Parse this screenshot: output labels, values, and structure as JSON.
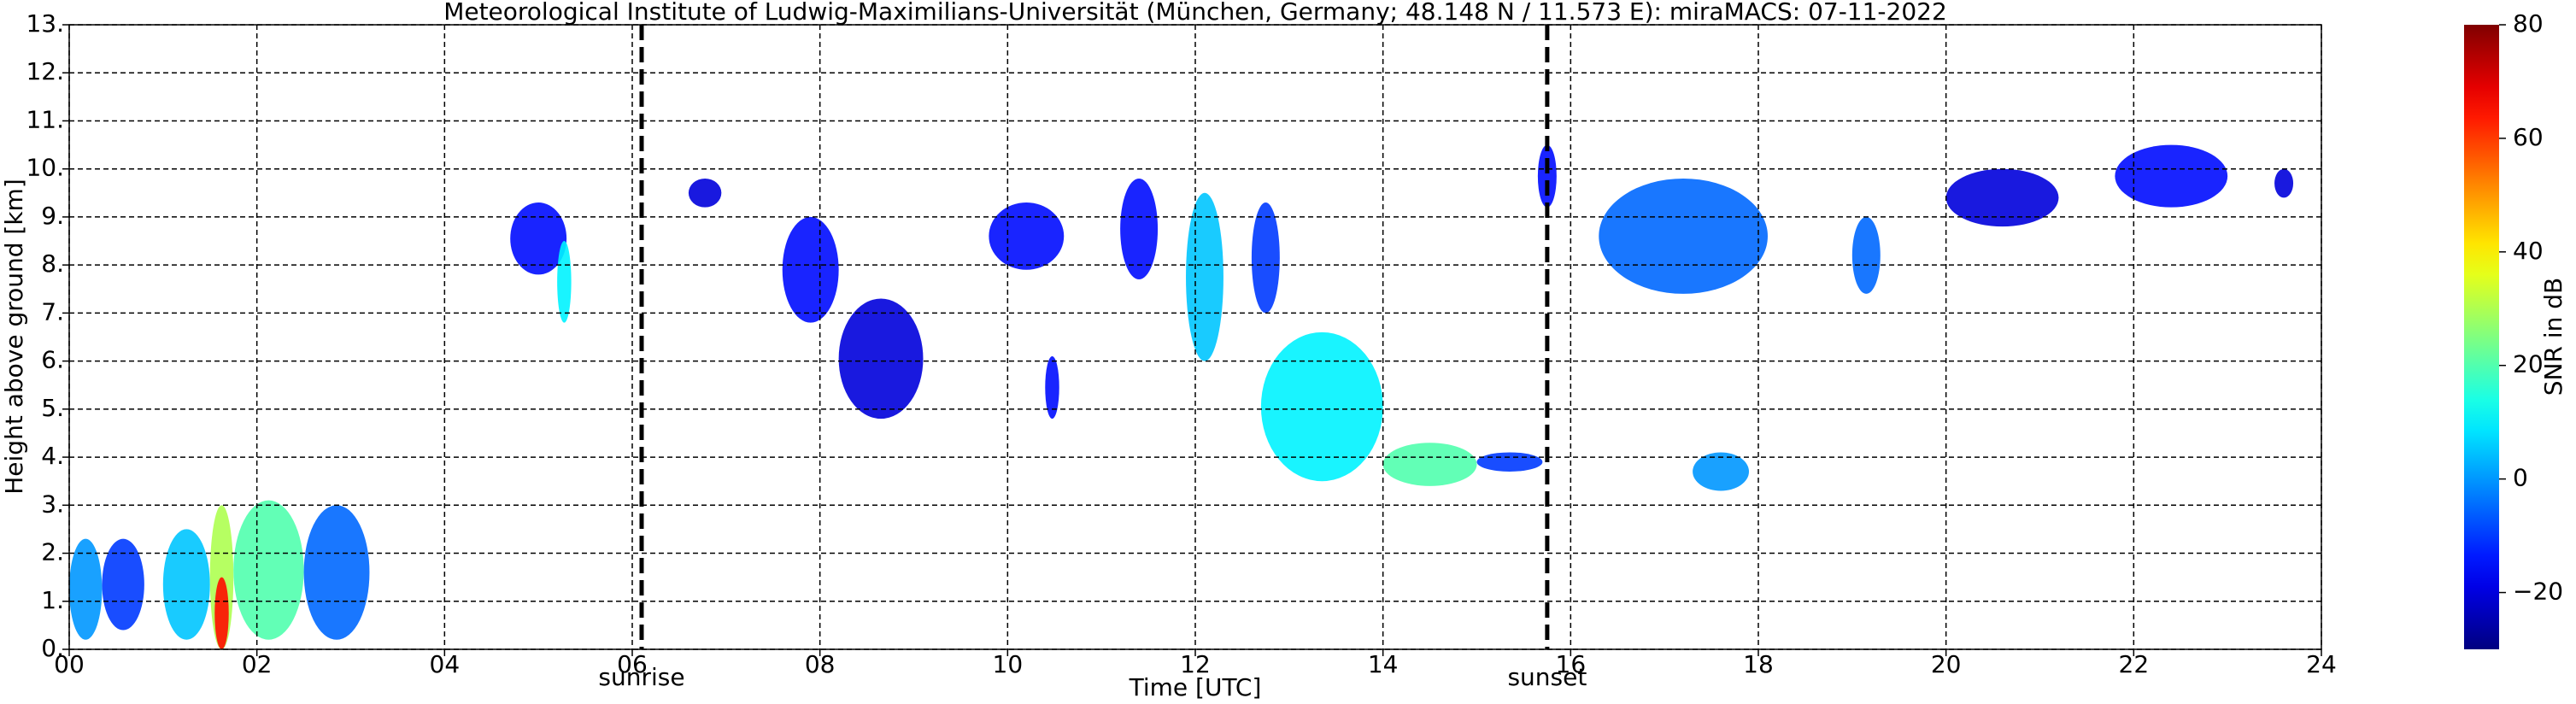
{
  "chart_data": {
    "type": "heatmap",
    "title": "Meteorological Institute of Ludwig-Maximilians-Universität (München, Germany; 48.148 N / 11.573 E):    miraMACS: 07-11-2022",
    "xlabel": "Time [UTC]",
    "ylabel": "Height above ground [km]",
    "colorbar_label": "SNR in dB",
    "colormap": "jet",
    "grid": true,
    "xlim": [
      0,
      24
    ],
    "ylim": [
      0,
      13
    ],
    "clim": [
      -30,
      80
    ],
    "xticks": [
      {
        "value": 0,
        "label": "00"
      },
      {
        "value": 2,
        "label": "02"
      },
      {
        "value": 4,
        "label": "04"
      },
      {
        "value": 6,
        "label": "06"
      },
      {
        "value": 8,
        "label": "08"
      },
      {
        "value": 10,
        "label": "10"
      },
      {
        "value": 12,
        "label": "12"
      },
      {
        "value": 14,
        "label": "14"
      },
      {
        "value": 16,
        "label": "16"
      },
      {
        "value": 18,
        "label": "18"
      },
      {
        "value": 20,
        "label": "20"
      },
      {
        "value": 22,
        "label": "22"
      },
      {
        "value": 24,
        "label": "24"
      }
    ],
    "yticks": [
      {
        "value": 0,
        "label": "0."
      },
      {
        "value": 1,
        "label": "1."
      },
      {
        "value": 2,
        "label": "2."
      },
      {
        "value": 3,
        "label": "3."
      },
      {
        "value": 4,
        "label": "4."
      },
      {
        "value": 5,
        "label": "5."
      },
      {
        "value": 6,
        "label": "6."
      },
      {
        "value": 7,
        "label": "7."
      },
      {
        "value": 8,
        "label": "8."
      },
      {
        "value": 9,
        "label": "9."
      },
      {
        "value": 10,
        "label": "10."
      },
      {
        "value": 11,
        "label": "11."
      },
      {
        "value": 12,
        "label": "12."
      },
      {
        "value": 13,
        "label": "13."
      }
    ],
    "cticks": [
      {
        "value": -20,
        "label": "−20"
      },
      0,
      20,
      40,
      60,
      80
    ],
    "annotations": [
      {
        "x": 6.1,
        "label": "sunrise"
      },
      {
        "x": 15.75,
        "label": "sunset"
      }
    ],
    "cells": [
      {
        "x": [
          0,
          0.35
        ],
        "y": [
          0.2,
          2.3
        ],
        "snr": 0
      },
      {
        "x": [
          0.35,
          0.8
        ],
        "y": [
          0.4,
          2.3
        ],
        "snr": -10
      },
      {
        "x": [
          1.0,
          1.5
        ],
        "y": [
          0.2,
          2.5
        ],
        "snr": 5
      },
      {
        "x": [
          1.5,
          1.75
        ],
        "y": [
          0,
          3.0
        ],
        "snr": 30
      },
      {
        "x": [
          1.55,
          1.7
        ],
        "y": [
          0,
          1.5
        ],
        "snr": 65
      },
      {
        "x": [
          1.75,
          2.5
        ],
        "y": [
          0.2,
          3.1
        ],
        "snr": 20
      },
      {
        "x": [
          2.5,
          3.2
        ],
        "y": [
          0.2,
          3.0
        ],
        "snr": -5
      },
      {
        "x": [
          4.7,
          5.3
        ],
        "y": [
          7.8,
          9.3
        ],
        "snr": -15
      },
      {
        "x": [
          5.2,
          5.35
        ],
        "y": [
          6.8,
          8.5
        ],
        "snr": 10
      },
      {
        "x": [
          6.6,
          6.95
        ],
        "y": [
          9.2,
          9.8
        ],
        "snr": -20
      },
      {
        "x": [
          7.6,
          8.2
        ],
        "y": [
          6.8,
          9.0
        ],
        "snr": -15
      },
      {
        "x": [
          8.2,
          9.1
        ],
        "y": [
          4.8,
          7.3
        ],
        "snr": -20
      },
      {
        "x": [
          9.8,
          10.6
        ],
        "y": [
          7.9,
          9.3
        ],
        "snr": -15
      },
      {
        "x": [
          10.4,
          10.55
        ],
        "y": [
          4.8,
          6.1
        ],
        "snr": -15
      },
      {
        "x": [
          11.2,
          11.6
        ],
        "y": [
          7.7,
          9.8
        ],
        "snr": -15
      },
      {
        "x": [
          11.9,
          12.3
        ],
        "y": [
          6.0,
          9.5
        ],
        "snr": 5
      },
      {
        "x": [
          12.6,
          12.9
        ],
        "y": [
          7.0,
          9.3
        ],
        "snr": -10
      },
      {
        "x": [
          12.7,
          14.0
        ],
        "y": [
          3.5,
          6.6
        ],
        "snr": 10
      },
      {
        "x": [
          14.0,
          15.0
        ],
        "y": [
          3.4,
          4.3
        ],
        "snr": 20
      },
      {
        "x": [
          15.0,
          15.7
        ],
        "y": [
          3.7,
          4.1
        ],
        "snr": -10
      },
      {
        "x": [
          15.65,
          15.85
        ],
        "y": [
          9.2,
          10.5
        ],
        "snr": -15
      },
      {
        "x": [
          16.3,
          18.1
        ],
        "y": [
          7.4,
          9.8
        ],
        "snr": -5
      },
      {
        "x": [
          19.0,
          19.3
        ],
        "y": [
          7.4,
          9.0
        ],
        "snr": -5
      },
      {
        "x": [
          17.3,
          17.9
        ],
        "y": [
          3.3,
          4.1
        ],
        "snr": 0
      },
      {
        "x": [
          20.0,
          21.2
        ],
        "y": [
          8.8,
          10.0
        ],
        "snr": -20
      },
      {
        "x": [
          21.8,
          23.0
        ],
        "y": [
          9.2,
          10.5
        ],
        "snr": -15
      },
      {
        "x": [
          23.5,
          23.7
        ],
        "y": [
          9.4,
          10.0
        ],
        "snr": -20
      }
    ]
  }
}
